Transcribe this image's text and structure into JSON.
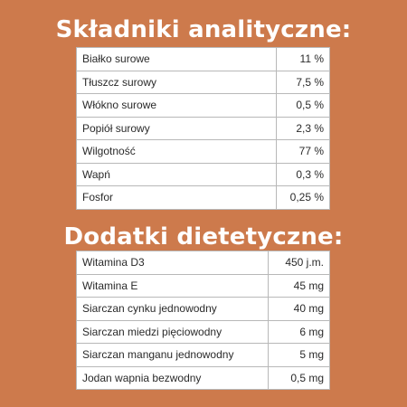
{
  "colors": {
    "background": "#cd7a4c",
    "heading_text": "#ffffff",
    "table_background": "#ffffff",
    "table_border": "#b8b8b8",
    "cell_text": "#2a2a2a"
  },
  "analytical": {
    "title": "Składniki analityczne:",
    "rows": [
      {
        "name": "Białko surowe",
        "value": "11 %"
      },
      {
        "name": "Tłuszcz surowy",
        "value": "7,5 %"
      },
      {
        "name": "Włókno surowe",
        "value": "0,5 %"
      },
      {
        "name": "Popiół surowy",
        "value": "2,3 %"
      },
      {
        "name": "Wilgotność",
        "value": "77 %"
      },
      {
        "name": "Wapń",
        "value": "0,3 %"
      },
      {
        "name": "Fosfor",
        "value": "0,25 %"
      }
    ]
  },
  "additives": {
    "title": "Dodatki dietetyczne:",
    "rows": [
      {
        "name": "Witamina D3",
        "value": "450 j.m."
      },
      {
        "name": "Witamina E",
        "value": "45 mg"
      },
      {
        "name": "Siarczan  cynku jednowodny",
        "value": "40 mg"
      },
      {
        "name": "Siarczan  miedzi pięciowodny",
        "value": "6 mg"
      },
      {
        "name": "Siarczan  manganu jednowodny",
        "value": "5 mg"
      },
      {
        "name": "Jodan wapnia bezwodny",
        "value": "0,5 mg"
      }
    ]
  }
}
